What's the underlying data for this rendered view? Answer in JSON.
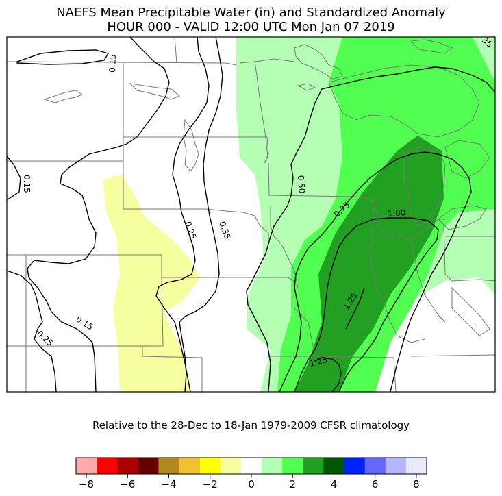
{
  "title_line1": "NAEFS Mean Precipitable Water (in) and Standardized Anomaly",
  "title_line2": "HOUR 000 - VALID 12:00 UTC Mon Jan 07 2019",
  "footnote": "Relative to the 28-Dec to 18-Jan 1979-2009 CFSR climatology",
  "contour_labels": [
    "0.15",
    "0.15",
    "0.15",
    "0.25",
    "0.25",
    "0.35",
    "0.50",
    "0.75",
    "1.00",
    "1.25",
    "1.25",
    "35"
  ],
  "colorbar": {
    "colors": [
      "#ffaaaa",
      "#ff0000",
      "#aa0000",
      "#660000",
      "#b08820",
      "#f0c030",
      "#ffff00",
      "#f5ffa0",
      "#ffffff",
      "#b5ffb5",
      "#50ff50",
      "#22a022",
      "#005500",
      "#0022ff",
      "#6666ff",
      "#b5b5ff",
      "#e8e8ff"
    ],
    "tick_labels": [
      "−8",
      "−6",
      "−4",
      "−2",
      "0",
      "2",
      "4",
      "6",
      "8"
    ]
  },
  "colors": {
    "anomaly_light_green": "#b5ffb5",
    "anomaly_green": "#50ff50",
    "anomaly_dark_green": "#22a022",
    "anomaly_yellow": "#f5ffa0"
  }
}
